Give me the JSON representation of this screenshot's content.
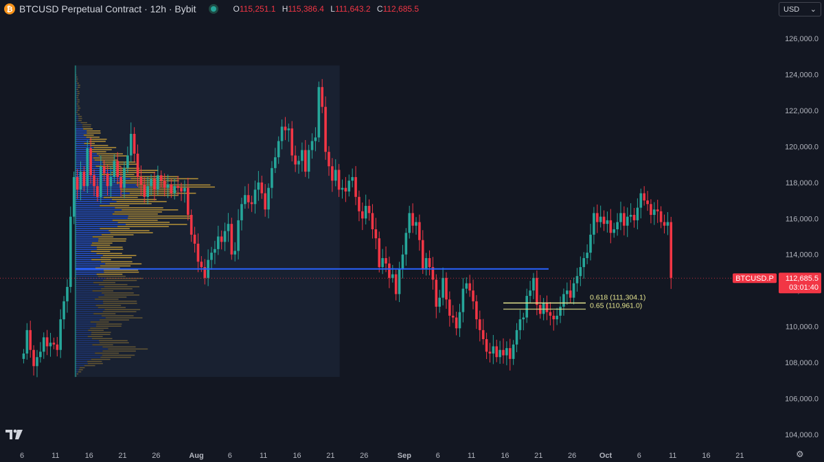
{
  "header": {
    "coin_glyph": "₿",
    "title": "BTCUSD Perpetual Contract · 12h · Bybit",
    "ohlc": [
      {
        "k": "O",
        "v": "115,251.1"
      },
      {
        "k": "H",
        "v": "115,386.4"
      },
      {
        "k": "L",
        "v": "111,643.2"
      },
      {
        "k": "C",
        "v": "112,685.5"
      }
    ]
  },
  "currency_select": {
    "value": "USD",
    "caret": "⌄"
  },
  "colors": {
    "background": "#131722",
    "up": "#26a69a",
    "down": "#f23645",
    "vp_blue": "#2962ff",
    "vp_yellow": "#d4a73a",
    "poc_line": "#2962ff",
    "fib": "#e5e58f",
    "price_tag": "#f23645"
  },
  "chart_data": {
    "type": "candlestick",
    "symbol": "BTCUSD.P",
    "interval": "12h",
    "y_axis": {
      "ticks": [
        "126,000.0",
        "124,000.0",
        "122,000.0",
        "120,000.0",
        "118,000.0",
        "116,000.0",
        "114,000.0",
        "112,000.0",
        "110,000.0",
        "108,000.0",
        "106,000.0",
        "104,000.0"
      ],
      "tick_values": [
        126000,
        124000,
        122000,
        120000,
        118000,
        116000,
        114000,
        112000,
        110000,
        108000,
        106000,
        104000
      ],
      "range": [
        103000,
        127200
      ]
    },
    "x_axis": {
      "ticks": [
        {
          "label": "6",
          "day": 0
        },
        {
          "label": "11",
          "day": 5
        },
        {
          "label": "16",
          "day": 10
        },
        {
          "label": "21",
          "day": 15
        },
        {
          "label": "26",
          "day": 20
        },
        {
          "label": "Aug",
          "day": 26,
          "bold": true
        },
        {
          "label": "6",
          "day": 31
        },
        {
          "label": "11",
          "day": 36
        },
        {
          "label": "16",
          "day": 41
        },
        {
          "label": "21",
          "day": 46
        },
        {
          "label": "26",
          "day": 51
        },
        {
          "label": "Sep",
          "day": 57,
          "bold": true
        },
        {
          "label": "6",
          "day": 62
        },
        {
          "label": "11",
          "day": 67
        },
        {
          "label": "16",
          "day": 72
        },
        {
          "label": "21",
          "day": 77
        },
        {
          "label": "26",
          "day": 82
        },
        {
          "label": "Oct",
          "day": 87,
          "bold": true
        },
        {
          "label": "6",
          "day": 92
        },
        {
          "label": "11",
          "day": 97
        },
        {
          "label": "16",
          "day": 102
        },
        {
          "label": "21",
          "day": 107
        }
      ]
    },
    "candles_close": [
      108500,
      109800,
      108700,
      107800,
      108300,
      108600,
      109400,
      108900,
      109100,
      109000,
      108700,
      110400,
      111400,
      112200,
      116100,
      118300,
      117600,
      118600,
      117800,
      119900,
      118400,
      117800,
      117200,
      118900,
      118500,
      117800,
      118300,
      119200,
      118300,
      117700,
      118800,
      119500,
      120700,
      119600,
      118300,
      117900,
      117200,
      117800,
      118200,
      117600,
      118400,
      118100,
      117700,
      117900,
      117400,
      117800,
      117700,
      117500,
      117700,
      116200,
      115100,
      114600,
      113600,
      113300,
      112700,
      113700,
      114100,
      114300,
      115000,
      114700,
      115300,
      115700,
      114000,
      114200,
      115900,
      116800,
      117300,
      116900,
      116800,
      117600,
      118000,
      117400,
      116500,
      117700,
      118800,
      119400,
      120300,
      121100,
      120900,
      121000,
      119500,
      119000,
      119200,
      119800,
      118600,
      119800,
      120300,
      120500,
      123300,
      122200,
      119700,
      118900,
      118100,
      118700,
      117600,
      117700,
      117500,
      118100,
      118300,
      117200,
      116400,
      116000,
      116700,
      116300,
      115400,
      114900,
      113300,
      113800,
      113500,
      112700,
      112900,
      111800,
      113200,
      114000,
      115200,
      116300,
      115600,
      115800,
      114800,
      113200,
      113800,
      113300,
      112600,
      111100,
      111600,
      112700,
      111500,
      110600,
      110500,
      109900,
      110800,
      112100,
      112400,
      112000,
      111400,
      110400,
      109800,
      109300,
      108600,
      108500,
      108900,
      108300,
      108700,
      108400,
      108800,
      108200,
      109000,
      109800,
      110400,
      110500,
      111700,
      112000,
      112700,
      111200,
      110700,
      111300,
      110800,
      110600,
      110400,
      110600,
      111100,
      111800,
      112000,
      111600,
      112400,
      112800,
      113300,
      113800,
      114100,
      115100,
      116300,
      115800,
      116100,
      115700,
      115900,
      115200,
      115400,
      115800,
      116300,
      115600,
      116100,
      116200,
      115900,
      116600,
      117400,
      117000,
      116800,
      116200,
      116500,
      116400,
      115800,
      115600,
      115800,
      112700
    ],
    "volume_profile": {
      "top": 124500,
      "bottom": 107200,
      "start_day": 9.5,
      "end_day": 45,
      "poc": 113200
    },
    "poc_price": 113200,
    "last_price": {
      "symbol_label": "BTCUSD.P",
      "price_label": "112,685.5",
      "countdown": "03:01:40",
      "value": 112685.5
    },
    "fib_levels": [
      {
        "label": "0.618 (111,304.1)",
        "value": 111304.1
      },
      {
        "label": "0.65 (110,961.0)",
        "value": 110961.0
      }
    ]
  }
}
